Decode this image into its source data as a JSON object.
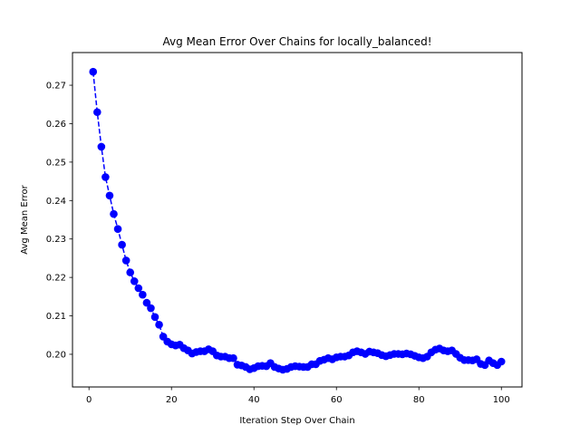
{
  "chart_data": {
    "type": "line",
    "title": "Avg Mean Error Over Chains for locally_balanced!",
    "xlabel": "Iteration Step Over Chain",
    "ylabel": "Avg Mean Error",
    "xlim": [
      -4,
      105
    ],
    "ylim": [
      0.1915,
      0.2785
    ],
    "x_ticks": [
      0,
      20,
      40,
      60,
      80,
      100
    ],
    "y_ticks": [
      0.2,
      0.21,
      0.22,
      0.23,
      0.24,
      0.25,
      0.26,
      0.27
    ],
    "x_tick_labels": [
      "0",
      "20",
      "40",
      "60",
      "80",
      "100"
    ],
    "y_tick_labels": [
      "0.20",
      "0.21",
      "0.22",
      "0.23",
      "0.24",
      "0.25",
      "0.26",
      "0.27"
    ],
    "grid": false,
    "legend": "none",
    "series": [
      {
        "color": "#0000ff",
        "line_style": "dashed",
        "marker": "circle",
        "x": [
          1,
          2,
          3,
          4,
          5,
          6,
          7,
          8,
          9,
          10,
          11,
          12,
          13,
          14,
          15,
          16,
          17,
          18,
          19,
          20,
          21,
          22,
          23,
          24,
          25,
          26,
          27,
          28,
          29,
          30,
          31,
          32,
          33,
          34,
          35,
          36,
          37,
          38,
          39,
          40,
          41,
          42,
          43,
          44,
          45,
          46,
          47,
          48,
          49,
          50,
          51,
          52,
          53,
          54,
          55,
          56,
          57,
          58,
          59,
          60,
          61,
          62,
          63,
          64,
          65,
          66,
          67,
          68,
          69,
          70,
          71,
          72,
          73,
          74,
          75,
          76,
          77,
          78,
          79,
          80,
          81,
          82,
          83,
          84,
          85,
          86,
          87,
          88,
          89,
          90,
          91,
          92,
          93,
          94,
          95,
          96,
          97,
          98,
          99,
          100
        ],
        "y": [
          0.2735,
          0.263,
          0.254,
          0.2461,
          0.2413,
          0.2365,
          0.2326,
          0.2285,
          0.2244,
          0.2213,
          0.219,
          0.2172,
          0.2155,
          0.2134,
          0.212,
          0.2097,
          0.2077,
          0.2046,
          0.2033,
          0.2026,
          0.2023,
          0.2025,
          0.2016,
          0.201,
          0.2002,
          0.2006,
          0.2008,
          0.2008,
          0.2013,
          0.2008,
          0.1997,
          0.1994,
          0.1994,
          0.199,
          0.199,
          0.1973,
          0.1971,
          0.1967,
          0.1961,
          0.1964,
          0.1969,
          0.197,
          0.1969,
          0.1977,
          0.1967,
          0.1963,
          0.196,
          0.1962,
          0.1967,
          0.1969,
          0.1968,
          0.1967,
          0.1967,
          0.1974,
          0.1974,
          0.1983,
          0.1986,
          0.199,
          0.1987,
          0.1992,
          0.1994,
          0.1994,
          0.1997,
          0.2005,
          0.2008,
          0.2005,
          0.2001,
          0.2007,
          0.2005,
          0.2003,
          0.1998,
          0.1995,
          0.1998,
          0.2001,
          0.2001,
          0.2,
          0.2002,
          0.2,
          0.1996,
          0.1992,
          0.199,
          0.1994,
          0.2005,
          0.2012,
          0.2015,
          0.201,
          0.2008,
          0.201,
          0.2001,
          0.1991,
          0.1985,
          0.1985,
          0.1984,
          0.1987,
          0.1975,
          0.1972,
          0.1984,
          0.1977,
          0.1972,
          0.1981
        ]
      }
    ]
  }
}
